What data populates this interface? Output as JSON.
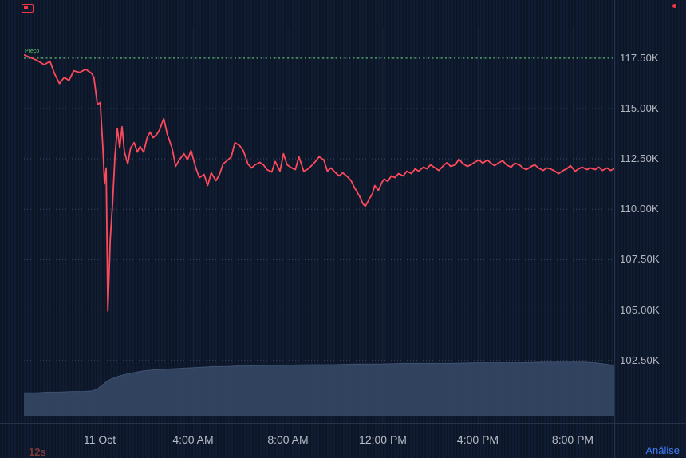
{
  "colors": {
    "background": "#0d1627",
    "stripe": "#101c31",
    "price_line": "#fb4a5c",
    "prev_close_line": "#4d9e63",
    "volume_fill": "#344663",
    "volume_edge": "#4c5f85",
    "grid_dot": "#3a4763",
    "v_grid": "rgba(160,175,205,0.07)",
    "separator": "#26324a",
    "axis_text": "#b2b6c0",
    "link": "#3f7ef7",
    "countdown_text": "#7e3a3a",
    "indicator_red": "#f23645",
    "series_label_green": "#59c06e"
  },
  "price_scale": {
    "labels": [
      "117.50K",
      "115.00K",
      "112.50K",
      "110.00K",
      "107.50K",
      "105.00K",
      "102.50K"
    ]
  },
  "time_scale": {
    "labels": [
      "11 Oct",
      "4:00 AM",
      "8:00 AM",
      "12:00 PM",
      "4:00 PM",
      "8:00 PM"
    ]
  },
  "overlays": {
    "series_label": "Preço",
    "countdown": "12s",
    "analysis_link": "Análise"
  },
  "chart_data": {
    "type": "line",
    "title": "",
    "x_unit": "hours (session starting 10 Oct ~21:00, ticks at 11 Oct 00:00 through 8:00 PM)",
    "y_unit": "price in thousands (K)",
    "xlim": [
      0,
      24.9
    ],
    "ylim": [
      99.4,
      119.0
    ],
    "grid": true,
    "legend": "none",
    "y_ticks": [
      117.5,
      115.0,
      112.5,
      110.0,
      107.5,
      105.0,
      102.5
    ],
    "y_tick_labels": [
      "117.50K",
      "115.00K",
      "112.50K",
      "110.00K",
      "107.50K",
      "105.00K",
      "102.50K"
    ],
    "x_ticks": [
      3.2,
      7.14,
      11.14,
      15.15,
      19.16,
      23.16
    ],
    "x_tick_labels": [
      "11 Oct",
      "4:00 AM",
      "8:00 AM",
      "12:00 PM",
      "4:00 PM",
      "8:00 PM"
    ],
    "prev_close": 117.5,
    "series": [
      {
        "name": "price",
        "color": "#fb4a5c",
        "points": [
          [
            0,
            117.66
          ],
          [
            0.5,
            117.42
          ],
          [
            0.85,
            117.18
          ],
          [
            1.1,
            117.34
          ],
          [
            1.3,
            116.71
          ],
          [
            1.5,
            116.24
          ],
          [
            1.7,
            116.55
          ],
          [
            1.9,
            116.39
          ],
          [
            2.1,
            116.87
          ],
          [
            2.35,
            116.79
          ],
          [
            2.6,
            116.95
          ],
          [
            2.85,
            116.75
          ],
          [
            2.95,
            116.55
          ],
          [
            3.1,
            115.21
          ],
          [
            3.22,
            115.29
          ],
          [
            3.33,
            113.04
          ],
          [
            3.4,
            111.26
          ],
          [
            3.47,
            112.05
          ],
          [
            3.54,
            104.94
          ],
          [
            3.64,
            108.49
          ],
          [
            3.74,
            110.27
          ],
          [
            3.84,
            112.64
          ],
          [
            3.94,
            114.02
          ],
          [
            4.04,
            113.04
          ],
          [
            4.14,
            114.1
          ],
          [
            4.24,
            112.84
          ],
          [
            4.38,
            112.25
          ],
          [
            4.5,
            113.04
          ],
          [
            4.65,
            113.31
          ],
          [
            4.78,
            112.84
          ],
          [
            4.9,
            113.12
          ],
          [
            5.05,
            112.84
          ],
          [
            5.2,
            113.55
          ],
          [
            5.32,
            113.83
          ],
          [
            5.45,
            113.55
          ],
          [
            5.6,
            113.71
          ],
          [
            5.72,
            113.94
          ],
          [
            5.9,
            114.5
          ],
          [
            6.05,
            113.71
          ],
          [
            6.25,
            113.04
          ],
          [
            6.4,
            112.13
          ],
          [
            6.55,
            112.45
          ],
          [
            6.75,
            112.76
          ],
          [
            6.9,
            112.45
          ],
          [
            7.05,
            112.92
          ],
          [
            7.25,
            112.05
          ],
          [
            7.4,
            111.57
          ],
          [
            7.6,
            111.73
          ],
          [
            7.75,
            111.18
          ],
          [
            7.9,
            111.81
          ],
          [
            8.1,
            111.42
          ],
          [
            8.25,
            111.73
          ],
          [
            8.4,
            112.25
          ],
          [
            8.6,
            112.45
          ],
          [
            8.75,
            112.61
          ],
          [
            8.9,
            113.31
          ],
          [
            9.1,
            113.16
          ],
          [
            9.25,
            112.92
          ],
          [
            9.45,
            112.25
          ],
          [
            9.6,
            112.05
          ],
          [
            9.75,
            112.21
          ],
          [
            9.95,
            112.33
          ],
          [
            10.1,
            112.21
          ],
          [
            10.25,
            111.97
          ],
          [
            10.45,
            111.85
          ],
          [
            10.6,
            112.37
          ],
          [
            10.8,
            111.89
          ],
          [
            10.95,
            112.76
          ],
          [
            11.1,
            112.21
          ],
          [
            11.3,
            112.05
          ],
          [
            11.45,
            111.97
          ],
          [
            11.6,
            112.61
          ],
          [
            11.8,
            111.89
          ],
          [
            11.95,
            111.97
          ],
          [
            12.1,
            112.13
          ],
          [
            12.3,
            112.37
          ],
          [
            12.45,
            112.61
          ],
          [
            12.65,
            112.45
          ],
          [
            12.8,
            111.89
          ],
          [
            12.95,
            112.05
          ],
          [
            13.15,
            111.81
          ],
          [
            13.3,
            111.66
          ],
          [
            13.45,
            111.81
          ],
          [
            13.65,
            111.61
          ],
          [
            13.8,
            111.42
          ],
          [
            13.95,
            111.06
          ],
          [
            14.15,
            110.67
          ],
          [
            14.3,
            110.27
          ],
          [
            14.4,
            110.15
          ],
          [
            14.55,
            110.47
          ],
          [
            14.7,
            110.78
          ],
          [
            14.8,
            111.18
          ],
          [
            14.95,
            110.94
          ],
          [
            15.1,
            111.34
          ],
          [
            15.2,
            111.5
          ],
          [
            15.35,
            111.38
          ],
          [
            15.5,
            111.66
          ],
          [
            15.65,
            111.57
          ],
          [
            15.8,
            111.77
          ],
          [
            16,
            111.66
          ],
          [
            16.15,
            111.89
          ],
          [
            16.35,
            111.77
          ],
          [
            16.5,
            112.01
          ],
          [
            16.65,
            111.89
          ],
          [
            16.85,
            112.09
          ],
          [
            17,
            112.01
          ],
          [
            17.15,
            112.21
          ],
          [
            17.35,
            112.05
          ],
          [
            17.5,
            111.93
          ],
          [
            17.7,
            112.17
          ],
          [
            17.85,
            112.33
          ],
          [
            18,
            112.13
          ],
          [
            18.2,
            112.21
          ],
          [
            18.35,
            112.49
          ],
          [
            18.5,
            112.29
          ],
          [
            18.7,
            112.13
          ],
          [
            18.85,
            112.21
          ],
          [
            19,
            112.33
          ],
          [
            19.2,
            112.45
          ],
          [
            19.35,
            112.29
          ],
          [
            19.55,
            112.45
          ],
          [
            19.7,
            112.29
          ],
          [
            19.85,
            112.17
          ],
          [
            20.05,
            112.33
          ],
          [
            20.2,
            112.41
          ],
          [
            20.35,
            112.21
          ],
          [
            20.55,
            112.09
          ],
          [
            20.7,
            112.29
          ],
          [
            20.9,
            112.21
          ],
          [
            21.05,
            112.05
          ],
          [
            21.2,
            111.97
          ],
          [
            21.4,
            112.13
          ],
          [
            21.55,
            112.21
          ],
          [
            21.7,
            112.05
          ],
          [
            21.9,
            111.93
          ],
          [
            22.05,
            112.05
          ],
          [
            22.2,
            112.01
          ],
          [
            22.4,
            111.89
          ],
          [
            22.55,
            111.77
          ],
          [
            22.75,
            111.93
          ],
          [
            22.9,
            112.01
          ],
          [
            23.05,
            112.17
          ],
          [
            23.25,
            111.89
          ],
          [
            23.4,
            112.01
          ],
          [
            23.55,
            112.09
          ],
          [
            23.75,
            111.97
          ],
          [
            23.9,
            112.05
          ],
          [
            24.1,
            111.97
          ],
          [
            24.25,
            112.09
          ],
          [
            24.4,
            111.93
          ],
          [
            24.6,
            112.05
          ],
          [
            24.75,
            111.93
          ],
          [
            24.9,
            112.01
          ]
        ]
      },
      {
        "name": "volume",
        "color": "#344663",
        "unit": "relative 0-100",
        "points": [
          [
            0,
            36
          ],
          [
            0.5,
            36
          ],
          [
            1,
            37
          ],
          [
            1.5,
            37
          ],
          [
            2,
            38
          ],
          [
            2.5,
            38
          ],
          [
            2.9,
            39
          ],
          [
            3.1,
            42
          ],
          [
            3.3,
            48
          ],
          [
            3.5,
            54
          ],
          [
            3.7,
            58
          ],
          [
            4,
            62
          ],
          [
            4.3,
            65
          ],
          [
            4.7,
            68
          ],
          [
            5,
            70
          ],
          [
            5.5,
            72
          ],
          [
            6,
            73
          ],
          [
            6.5,
            74
          ],
          [
            7,
            75
          ],
          [
            7.5,
            76
          ],
          [
            8,
            77
          ],
          [
            8.5,
            77
          ],
          [
            9,
            78
          ],
          [
            9.5,
            78
          ],
          [
            10,
            79
          ],
          [
            11,
            79
          ],
          [
            12,
            80
          ],
          [
            13,
            80
          ],
          [
            14,
            81
          ],
          [
            15,
            81
          ],
          [
            16,
            82
          ],
          [
            17,
            82
          ],
          [
            18,
            82
          ],
          [
            19,
            83
          ],
          [
            20,
            83
          ],
          [
            21,
            83
          ],
          [
            22,
            84
          ],
          [
            23,
            84
          ],
          [
            23.6,
            84
          ],
          [
            24.1,
            83
          ],
          [
            24.5,
            81
          ],
          [
            24.9,
            79
          ]
        ]
      }
    ]
  }
}
